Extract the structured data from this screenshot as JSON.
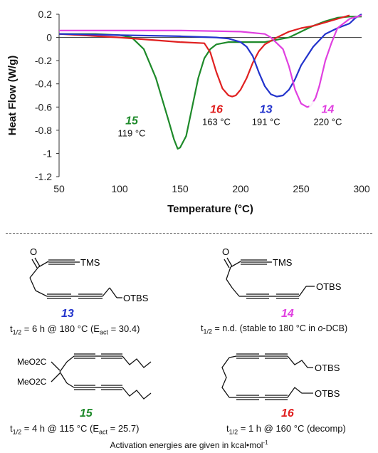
{
  "chart_data": {
    "type": "line",
    "xlabel": "Temperature (°C)",
    "ylabel": "Heat Flow (W/g)",
    "xlim": [
      50,
      300
    ],
    "ylim": [
      -1.2,
      0.2
    ],
    "x_ticks": [
      "50",
      "100",
      "150",
      "200",
      "250",
      "300"
    ],
    "y_ticks": [
      "0.2",
      "0",
      "-0.2",
      "-0.4",
      "-0.6",
      "-0.8",
      "-1",
      "-1.2"
    ],
    "x_tick_values": [
      50,
      100,
      150,
      200,
      250,
      300
    ],
    "y_tick_values": [
      0.2,
      0,
      -0.2,
      -0.4,
      -0.6,
      -0.8,
      -1,
      -1.2
    ],
    "grid": false,
    "series": [
      {
        "name": "15",
        "color": "#1e8a2a",
        "x": [
          50,
          80,
          100,
          110,
          120,
          130,
          140,
          145,
          148,
          150,
          155,
          160,
          165,
          170,
          175,
          180,
          190,
          200,
          210,
          220,
          230,
          240,
          250,
          260,
          270,
          280,
          290,
          300
        ],
        "y": [
          0.03,
          0.03,
          0.02,
          0.0,
          -0.1,
          -0.35,
          -0.7,
          -0.88,
          -0.96,
          -0.95,
          -0.85,
          -0.6,
          -0.35,
          -0.18,
          -0.1,
          -0.06,
          -0.04,
          -0.04,
          -0.04,
          -0.04,
          -0.02,
          0.0,
          0.05,
          0.1,
          0.14,
          0.17,
          0.18,
          0.18
        ]
      },
      {
        "name": "16",
        "color": "#e02020",
        "x": [
          50,
          100,
          150,
          170,
          175,
          180,
          185,
          190,
          193,
          196,
          200,
          205,
          210,
          215,
          220,
          230,
          240,
          250,
          260,
          270,
          280,
          290
        ],
        "y": [
          0.03,
          0.0,
          -0.04,
          -0.05,
          -0.13,
          -0.3,
          -0.44,
          -0.5,
          -0.51,
          -0.5,
          -0.45,
          -0.35,
          -0.22,
          -0.12,
          -0.06,
          0.0,
          0.05,
          0.08,
          0.1,
          0.13,
          0.16,
          0.19
        ]
      },
      {
        "name": "13",
        "color": "#2233cc",
        "x": [
          50,
          100,
          150,
          180,
          190,
          200,
          205,
          210,
          215,
          220,
          225,
          230,
          235,
          240,
          245,
          250,
          260,
          270,
          280,
          290,
          295,
          300
        ],
        "y": [
          0.03,
          0.02,
          0.01,
          0.0,
          -0.01,
          -0.04,
          -0.08,
          -0.16,
          -0.3,
          -0.42,
          -0.49,
          -0.51,
          -0.5,
          -0.45,
          -0.36,
          -0.24,
          -0.08,
          0.03,
          0.08,
          0.12,
          0.17,
          0.2
        ]
      },
      {
        "name": "14",
        "color": "#e040e0",
        "x": [
          50,
          100,
          150,
          200,
          220,
          225,
          235,
          240,
          245,
          250,
          255,
          258,
          262,
          265,
          270,
          275,
          280,
          290,
          300
        ],
        "y": [
          0.06,
          0.06,
          0.06,
          0.05,
          0.03,
          0.0,
          -0.1,
          -0.25,
          -0.45,
          -0.57,
          -0.6,
          -0.59,
          -0.52,
          -0.42,
          -0.2,
          -0.05,
          0.08,
          0.16,
          0.19
        ]
      }
    ],
    "annotations": [
      {
        "series": "15",
        "label": "15",
        "temp": "119 °C",
        "color": "#1e8a2a",
        "x": 110,
        "y": -0.75
      },
      {
        "series": "16",
        "label": "16",
        "temp": "163 °C",
        "color": "#e02020",
        "x": 180,
        "y": -0.65
      },
      {
        "series": "13",
        "label": "13",
        "temp": "191 °C",
        "color": "#2233cc",
        "x": 221,
        "y": -0.65
      },
      {
        "series": "14",
        "label": "14",
        "temp": "220 °C",
        "color": "#e040e0",
        "x": 272,
        "y": -0.65
      }
    ]
  },
  "compounds": [
    {
      "id": "13",
      "color": "#2233cc",
      "substituents": [
        "TMS",
        "OTBS"
      ],
      "half_life": "t1/2 = 6 h @ 180 °C (Eact = 30.4)"
    },
    {
      "id": "14",
      "color": "#e040e0",
      "substituents": [
        "TMS",
        "OTBS"
      ],
      "half_life": "t1/2 = n.d. (stable to 180 °C in o-DCB)"
    },
    {
      "id": "15",
      "color": "#1e8a2a",
      "substituents": [
        "MeO2C",
        "MeO2C"
      ],
      "half_life": "t1/2 = 4 h @ 115 °C (Eact = 25.7)"
    },
    {
      "id": "16",
      "color": "#e02020",
      "substituents": [
        "OTBS",
        "OTBS"
      ],
      "half_life": "t1/2 = 1 h @ 160 °C (decomp)"
    }
  ],
  "footnote": "Activation energies are given in kcal•mol-1"
}
